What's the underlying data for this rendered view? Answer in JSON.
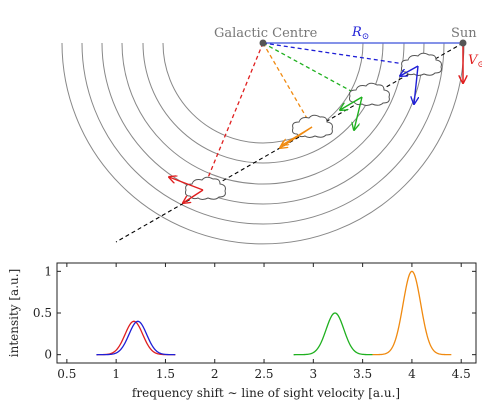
{
  "diagram": {
    "labels": {
      "galactic_centre": "Galactic Centre",
      "sun": "Sun",
      "r_sun": "R",
      "r_sun_sub": "⊙",
      "v_sun": "V",
      "v_sun_sub": "⊙"
    },
    "colors": {
      "blue": "#1f1fd6",
      "green": "#1fb01f",
      "orange": "#f08a10",
      "red": "#e01f1f",
      "ring": "#888888",
      "line_of_sight": "#000000",
      "radius_line": "#5b6ee0"
    }
  },
  "chart_data": {
    "type": "line",
    "xlabel": "frequency shift ∼ line of sight velocity [a.u.]",
    "ylabel": "intensity [a.u.]",
    "xlim": [
      0.4,
      4.65
    ],
    "ylim": [
      -0.1,
      1.1
    ],
    "xticks": [
      0.5,
      1,
      1.5,
      2,
      2.5,
      3,
      3.5,
      4,
      4.5
    ],
    "xtick_labels": [
      "0.5",
      "1",
      "1.5",
      "2",
      "2.5",
      "3",
      "3.5",
      "4",
      "4.5"
    ],
    "yticks": [
      0,
      0.5,
      1
    ],
    "ytick_labels": [
      "0",
      "0.5",
      "1"
    ],
    "grid": false,
    "series": [
      {
        "color": "#e01f1f",
        "center": 1.18,
        "amplitude": 0.4,
        "sigma": 0.09,
        "range": [
          0.8,
          1.6
        ]
      },
      {
        "color": "#1f1fd6",
        "center": 1.22,
        "amplitude": 0.4,
        "sigma": 0.09,
        "range": [
          0.8,
          1.6
        ]
      },
      {
        "color": "#1fb01f",
        "center": 3.22,
        "amplitude": 0.5,
        "sigma": 0.09,
        "range": [
          2.8,
          3.6
        ]
      },
      {
        "color": "#f08a10",
        "center": 4.0,
        "amplitude": 1.0,
        "sigma": 0.09,
        "range": [
          3.6,
          4.4
        ]
      }
    ]
  }
}
